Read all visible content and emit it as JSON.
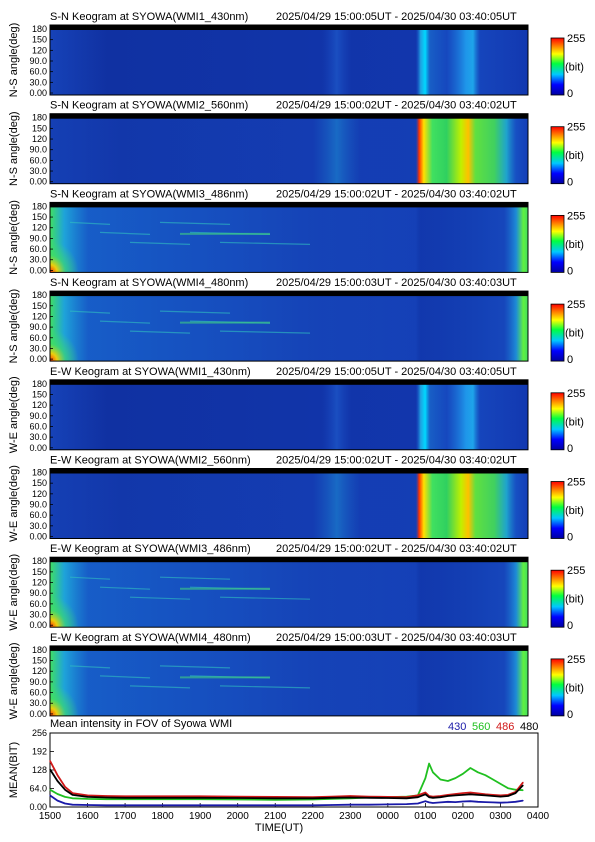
{
  "panels": [
    {
      "title": "S-N Keogram at SYOWA(WMI1_430nm)",
      "time_range": "2025/04/29 15:00:05UT - 2025/04/30 03:40:05UT",
      "ylabel": "N-S angle(deg)",
      "profile": "dim"
    },
    {
      "title": "S-N Keogram at SYOWA(WMI2_560nm)",
      "time_range": "2025/04/29 15:00:02UT - 2025/04/30 03:40:02UT",
      "ylabel": "N-S angle(deg)",
      "profile": "green"
    },
    {
      "title": "S-N Keogram at SYOWA(WMI3_486nm)",
      "time_range": "2025/04/29 15:00:02UT - 2025/04/30 03:40:02UT",
      "ylabel": "N-S angle(deg)",
      "profile": "twilight"
    },
    {
      "title": "S-N Keogram at SYOWA(WMI4_480nm)",
      "time_range": "2025/04/29 15:00:03UT - 2025/04/30 03:40:03UT",
      "ylabel": "N-S angle(deg)",
      "profile": "twilight"
    },
    {
      "title": "E-W Keogram at SYOWA(WMI1_430nm)",
      "time_range": "2025/04/29 15:00:05UT - 2025/04/30 03:40:05UT",
      "ylabel": "W-E angle(deg)",
      "profile": "dim"
    },
    {
      "title": "E-W Keogram at SYOWA(WMI2_560nm)",
      "time_range": "2025/04/29 15:00:02UT - 2025/04/30 03:40:02UT",
      "ylabel": "W-E angle(deg)",
      "profile": "green"
    },
    {
      "title": "E-W Keogram at SYOWA(WMI3_486nm)",
      "time_range": "2025/04/29 15:00:02UT - 2025/04/30 03:40:02UT",
      "ylabel": "W-E angle(deg)",
      "profile": "twilight"
    },
    {
      "title": "E-W Keogram at SYOWA(WMI4_480nm)",
      "time_range": "2025/04/29 15:00:03UT - 2025/04/30 03:40:03UT",
      "ylabel": "W-E angle(deg)",
      "profile": "twilight"
    }
  ],
  "keogram_yticks": [
    "180",
    "150",
    "120",
    "90.0",
    "60.0",
    "30.0",
    "0.00"
  ],
  "colorbar": {
    "max_label": "255",
    "unit_label": "(bit)",
    "min_label": "0"
  },
  "chart_data": {
    "type": "line",
    "title": "Mean intensity in FOV of Syowa WMI",
    "xlabel": "TIME(UT)",
    "ylabel": "MEAN(BIT)",
    "x_ticks": [
      "1500",
      "1600",
      "1700",
      "1800",
      "1900",
      "2000",
      "2100",
      "2200",
      "2300",
      "0000",
      "0100",
      "0200",
      "0300",
      "0400"
    ],
    "y_ticks": [
      "256",
      "192",
      "128",
      "64.0",
      "0.00"
    ],
    "ylim": [
      0,
      256
    ],
    "xlim_hours_ut": [
      15,
      28
    ],
    "x": [
      15.0,
      15.2,
      15.4,
      15.6,
      16.0,
      16.5,
      17.0,
      18.0,
      19.0,
      20.0,
      21.0,
      22.0,
      22.5,
      23.0,
      23.5,
      24.0,
      24.5,
      24.8,
      25.0,
      25.1,
      25.2,
      25.4,
      25.6,
      25.8,
      26.0,
      26.2,
      26.4,
      26.6,
      26.8,
      27.0,
      27.2,
      27.4,
      27.6
    ],
    "series": [
      {
        "name": "430",
        "color": "#1a1aa8",
        "values": [
          40,
          22,
          12,
          8,
          7,
          6,
          6,
          6,
          6,
          6,
          6,
          6,
          7,
          8,
          8,
          9,
          10,
          12,
          20,
          16,
          14,
          16,
          18,
          17,
          19,
          20,
          18,
          17,
          16,
          15,
          16,
          18,
          22
        ]
      },
      {
        "name": "560",
        "color": "#20c020",
        "values": [
          60,
          45,
          35,
          30,
          28,
          27,
          27,
          27,
          27,
          26,
          25,
          26,
          28,
          30,
          33,
          34,
          36,
          40,
          100,
          150,
          120,
          95,
          90,
          100,
          115,
          135,
          120,
          110,
          95,
          80,
          65,
          60,
          58
        ]
      },
      {
        "name": "486",
        "color": "#d01818",
        "values": [
          160,
          110,
          70,
          48,
          40,
          38,
          37,
          37,
          37,
          36,
          35,
          34,
          36,
          38,
          36,
          35,
          34,
          40,
          50,
          38,
          36,
          38,
          42,
          45,
          48,
          50,
          47,
          44,
          42,
          40,
          42,
          52,
          85
        ]
      },
      {
        "name": "480",
        "color": "#000000",
        "values": [
          130,
          90,
          60,
          42,
          35,
          33,
          32,
          32,
          32,
          31,
          30,
          30,
          32,
          33,
          32,
          31,
          30,
          34,
          44,
          34,
          32,
          34,
          38,
          40,
          42,
          44,
          42,
          40,
          38,
          36,
          38,
          48,
          75
        ]
      }
    ],
    "grid": false,
    "legend_placement": "top-right"
  }
}
